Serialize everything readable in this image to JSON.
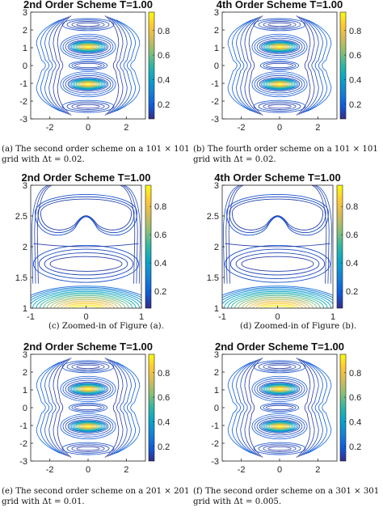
{
  "panels": [
    {
      "id": "a",
      "title": "2nd Order Scheme T=1.00",
      "caption_line1": "(a) The second order scheme on a 101 × 101",
      "caption_line2": "grid with Δt = 0.02.",
      "view": "full",
      "xticks": [
        "-2",
        "0",
        "2"
      ],
      "yticks": [
        "3",
        "2",
        "1",
        "0",
        "-1",
        "-2",
        "-3"
      ],
      "cbticks": [
        "0.8",
        "0.6",
        "0.4",
        "0.2"
      ]
    },
    {
      "id": "b",
      "title": "4th Order Scheme T=1.00",
      "caption_line1": "(b) The fourth order scheme on a 101 × 101",
      "caption_line2": "grid with Δt = 0.02.",
      "view": "full",
      "xticks": [
        "-2",
        "0",
        "2"
      ],
      "yticks": [
        "3",
        "2",
        "1",
        "0",
        "-1",
        "-2",
        "-3"
      ],
      "cbticks": [
        "0.8",
        "0.6",
        "0.4",
        "0.2"
      ]
    },
    {
      "id": "c",
      "title": "2nd Order Scheme T=1.00",
      "caption_line1": "(c) Zoomed-in of Figure (a).",
      "caption_line2": "",
      "view": "zoom",
      "xticks": [
        "-1",
        "0",
        "1"
      ],
      "yticks": [
        "3",
        "2.5",
        "2",
        "1.5",
        "1"
      ],
      "cbticks": [
        "0.8",
        "0.6",
        "0.4",
        "0.2"
      ]
    },
    {
      "id": "d",
      "title": "4th Order Scheme T=1.00",
      "caption_line1": "(d) Zoomed-in of Figure (b).",
      "caption_line2": "",
      "view": "zoom",
      "xticks": [
        "-1",
        "0",
        "1"
      ],
      "yticks": [
        "3",
        "2.5",
        "2",
        "1.5",
        "1"
      ],
      "cbticks": [
        "0.8",
        "0.6",
        "0.4",
        "0.2"
      ]
    },
    {
      "id": "e",
      "title": "2nd Order Scheme T=1.00",
      "caption_line1": "(e) The second order scheme on a 201 × 201",
      "caption_line2": "grid with Δt = 0.01.",
      "view": "full",
      "xticks": [
        "-2",
        "0",
        "2"
      ],
      "yticks": [
        "3",
        "2",
        "1",
        "0",
        "-1",
        "-2",
        "-3"
      ],
      "cbticks": [
        "0.8",
        "0.6",
        "0.4",
        "0.2"
      ]
    },
    {
      "id": "f",
      "title": "2nd Order Scheme T=1.00",
      "caption_line1": "(f) The second order scheme on a 301 × 301",
      "caption_line2": "grid with Δt = 0.005.",
      "view": "full",
      "xticks": [
        "-2",
        "0",
        "2"
      ],
      "yticks": [
        "3",
        "2",
        "1",
        "0",
        "-1",
        "-2",
        "-3"
      ],
      "cbticks": [
        "0.8",
        "0.6",
        "0.4",
        "0.2"
      ]
    }
  ],
  "colormap": [
    "#352a87",
    "#0f5cdd",
    "#1481d6",
    "#06a4ca",
    "#2eb7a4",
    "#87bf77",
    "#d1bb59",
    "#fec832",
    "#f9fb0e"
  ]
}
